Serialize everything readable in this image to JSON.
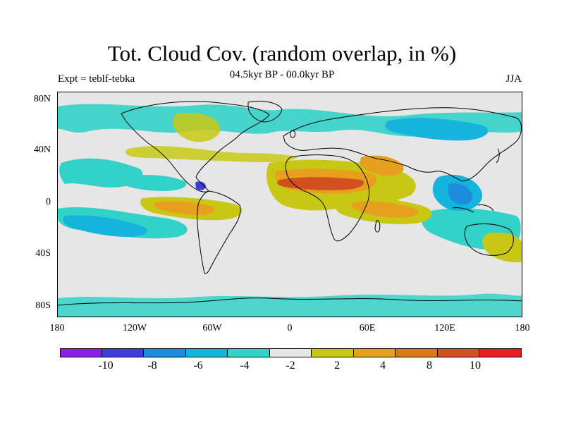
{
  "title": "Tot. Cloud Cov. (random overlap, in %)",
  "subtitle": "04.5kyr BP - 00.0kyr BP",
  "experiment_label": "Expt = teblf-tebka",
  "season_label": "JJA",
  "lat_ticks": [
    "80N",
    "40N",
    "0",
    "40S",
    "80S"
  ],
  "lon_ticks": [
    "180",
    "120W",
    "60W",
    "0",
    "60E",
    "120E",
    "180"
  ],
  "colorbar": {
    "colors": [
      "#8c1ee6",
      "#3c3cdc",
      "#1e8cdc",
      "#14b4dc",
      "#32d2c8",
      "#e6e6e6",
      "#c8c814",
      "#e6a01e",
      "#dc7814",
      "#d2501e",
      "#e61e1e"
    ],
    "labels": [
      "-10",
      "-8",
      "-6",
      "-4",
      "-2",
      "2",
      "4",
      "8",
      "10"
    ]
  },
  "map_color_key": {
    "strong_neg": "#3c3cdc",
    "neg6": "#1e8cdc",
    "neg4": "#14b4dc",
    "neg2": "#32d2c8",
    "pos2": "#c8c814",
    "pos4": "#e6a01e",
    "pos8": "#dc7814",
    "pos10": "#d2501e",
    "strong_pos": "#e61e1e"
  }
}
